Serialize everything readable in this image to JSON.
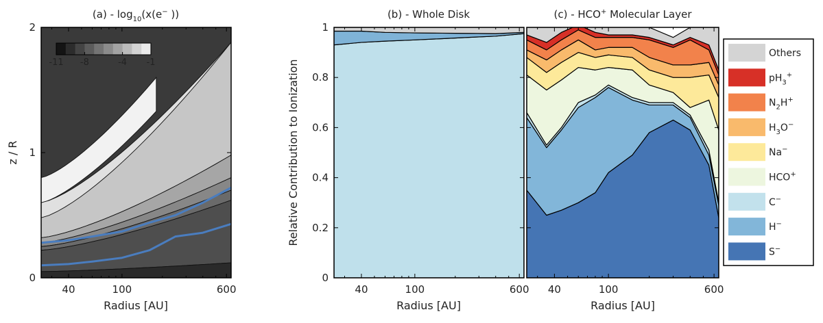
{
  "chart_data": [
    {
      "panel": "a",
      "type": "heatmap",
      "title": "(a) - log10(x(e− ))",
      "title_parts": {
        "prefix": "(a) - log",
        "sub": "10",
        "mid": "(x(e",
        "sup": "−",
        "suffix": " ))"
      },
      "xlabel": "Radius [AU]",
      "ylabel": "z / R",
      "x_scale": "log",
      "xlim": [
        25,
        650
      ],
      "ylim": [
        0,
        2
      ],
      "x_ticks": [
        40,
        100,
        600
      ],
      "y_ticks": [
        0,
        1,
        2
      ],
      "colorbar": {
        "min": -11,
        "max": -1,
        "ticks": [
          -11,
          -8,
          -4,
          -1
        ]
      },
      "contour_bands": [
        {
          "level": -1,
          "color": "#f2f2f2",
          "x": [
            25,
            180
          ],
          "y_low": [
            0.6,
            1.33
          ],
          "y_high": [
            0.8,
            1.6
          ]
        },
        {
          "level": -2,
          "color": "#e0e0e0",
          "x": [
            25,
            650
          ],
          "y_low": [
            0.48,
            1.4
          ],
          "y_high": [
            0.6,
            1.88
          ]
        },
        {
          "level": -3,
          "color": "#c6c6c6",
          "x": [
            25,
            650
          ],
          "y_low": [
            0.32,
            0.98
          ],
          "y_high": [
            0.48,
            1.88
          ]
        },
        {
          "level": -4,
          "color": "#a6a6a6",
          "x": [
            25,
            650
          ],
          "y_low": [
            0.28,
            0.8
          ],
          "y_high": [
            0.32,
            0.98
          ]
        },
        {
          "level": -5,
          "color": "#878787",
          "x": [
            25,
            650
          ],
          "y_low": [
            0.25,
            0.7
          ],
          "y_high": [
            0.28,
            0.8
          ]
        },
        {
          "level": -6,
          "color": "#6a6a6a",
          "x": [
            25,
            650
          ],
          "y_low": [
            0.22,
            0.62
          ],
          "y_high": [
            0.25,
            0.7
          ]
        },
        {
          "level": -7,
          "color": "#4e4e4e",
          "x": [
            25,
            650
          ],
          "y_low": [
            0.05,
            0.12
          ],
          "y_high": [
            0.22,
            0.62
          ]
        },
        {
          "level": -10,
          "color": "#2a2a2a",
          "x": [
            25,
            650
          ],
          "y_low": [
            0.0,
            0.0
          ],
          "y_high": [
            0.05,
            0.12
          ]
        }
      ],
      "hco_layer_lines": [
        {
          "name": "upper",
          "color": "#4a7dbf",
          "x": [
            25,
            40,
            60,
            100,
            160,
            250,
            400,
            650
          ],
          "y": [
            0.28,
            0.3,
            0.33,
            0.37,
            0.44,
            0.5,
            0.6,
            0.72
          ]
        },
        {
          "name": "lower",
          "color": "#4a7dbf",
          "x": [
            25,
            40,
            60,
            100,
            160,
            250,
            400,
            650
          ],
          "y": [
            0.1,
            0.11,
            0.13,
            0.16,
            0.22,
            0.33,
            0.36,
            0.43
          ]
        }
      ]
    },
    {
      "panel": "b",
      "type": "area",
      "title": "(b) - Whole Disk",
      "xlabel": "Radius [AU]",
      "ylabel": "Relative Contribution to Ionization",
      "x_scale": "log",
      "xlim": [
        25,
        650
      ],
      "ylim": [
        0,
        1
      ],
      "x_ticks": [
        40,
        100,
        600
      ],
      "y_ticks": [
        0,
        0.2,
        0.4,
        0.6,
        0.8,
        1
      ],
      "x": [
        25,
        40,
        60,
        100,
        160,
        250,
        400,
        650
      ],
      "series": [
        {
          "name": "C−",
          "color": "#bfe0eb",
          "values": [
            0.93,
            0.94,
            0.945,
            0.95,
            0.955,
            0.96,
            0.965,
            0.975
          ]
        },
        {
          "name": "H−",
          "color": "#7fb3d7",
          "values": [
            0.055,
            0.045,
            0.035,
            0.028,
            0.022,
            0.016,
            0.01,
            0.005
          ]
        },
        {
          "name": "Others",
          "color": "#d4d4d4",
          "values": [
            0.015,
            0.015,
            0.02,
            0.022,
            0.023,
            0.024,
            0.025,
            0.02
          ]
        }
      ]
    },
    {
      "panel": "c",
      "type": "area",
      "title": "(c) - HCO⁺ Molecular Layer",
      "title_parts": {
        "prefix": "(c) - HCO",
        "sup": "+",
        "suffix": " Molecular Layer"
      },
      "xlabel": "Radius [AU]",
      "x_scale": "log",
      "xlim": [
        25,
        650
      ],
      "ylim": [
        0,
        1
      ],
      "x_ticks": [
        40,
        100,
        600
      ],
      "x": [
        25,
        35,
        45,
        60,
        80,
        100,
        150,
        200,
        300,
        400,
        550,
        650
      ],
      "series": [
        {
          "name": "S−",
          "color": "#4575b4",
          "values": [
            0.35,
            0.25,
            0.27,
            0.3,
            0.34,
            0.42,
            0.49,
            0.58,
            0.63,
            0.59,
            0.45,
            0.24
          ]
        },
        {
          "name": "H−",
          "color": "#82b6d9",
          "values": [
            0.29,
            0.27,
            0.32,
            0.38,
            0.38,
            0.34,
            0.22,
            0.11,
            0.06,
            0.05,
            0.04,
            0.05
          ]
        },
        {
          "name": "C−",
          "color": "#c2e1ec",
          "values": [
            0.02,
            0.01,
            0.01,
            0.02,
            0.01,
            0.01,
            0.01,
            0.01,
            0.01,
            0.01,
            0.02,
            0.01
          ]
        },
        {
          "name": "HCO⁺",
          "color": "#edf6df",
          "values": [
            0.15,
            0.22,
            0.19,
            0.14,
            0.1,
            0.07,
            0.11,
            0.07,
            0.04,
            0.03,
            0.2,
            0.29
          ]
        },
        {
          "name": "Na−",
          "color": "#fde99a",
          "values": [
            0.07,
            0.07,
            0.07,
            0.06,
            0.05,
            0.05,
            0.05,
            0.06,
            0.06,
            0.12,
            0.1,
            0.13
          ]
        },
        {
          "name": "H₃O−",
          "color": "#f9ba6c",
          "values": [
            0.03,
            0.05,
            0.05,
            0.05,
            0.03,
            0.03,
            0.04,
            0.05,
            0.05,
            0.05,
            0.05,
            0.05
          ]
        },
        {
          "name": "N₂H⁺",
          "color": "#f2824b",
          "values": [
            0.04,
            0.04,
            0.04,
            0.04,
            0.05,
            0.04,
            0.04,
            0.07,
            0.07,
            0.1,
            0.05,
            0.04
          ]
        },
        {
          "name": "pH₃⁺",
          "color": "#d73027",
          "values": [
            0.02,
            0.03,
            0.03,
            0.02,
            0.02,
            0.01,
            0.01,
            0.01,
            0.01,
            0.01,
            0.02,
            0.02
          ]
        },
        {
          "name": "Others",
          "color": "#d4d4d4",
          "values": [
            0.03,
            0.06,
            0.02,
            0.02,
            0.02,
            0.03,
            0.03,
            0.04,
            0.03,
            0.04,
            0.07,
            0.17
          ]
        }
      ]
    }
  ],
  "legend": {
    "entries": [
      {
        "label": "Others",
        "color": "#d4d4d4"
      },
      {
        "label": "pH₃⁺",
        "color": "#d73027",
        "html": "pH<tspan dy=\"5\" font-size=\"10\">3</tspan><tspan dy=\"-11\" font-size=\"10\">+</tspan>"
      },
      {
        "label": "N₂H⁺",
        "color": "#f2824b",
        "html": "N<tspan dy=\"5\" font-size=\"10\">2</tspan><tspan dy=\"-5\">H</tspan><tspan dy=\"-6\" font-size=\"10\">+</tspan>"
      },
      {
        "label": "H₃O−",
        "color": "#f9ba6c",
        "html": "H<tspan dy=\"5\" font-size=\"10\">3</tspan><tspan dy=\"-5\">O</tspan><tspan dy=\"-6\" font-size=\"10\">−</tspan>"
      },
      {
        "label": "Na−",
        "color": "#fde99a",
        "html": "Na<tspan dy=\"-6\" font-size=\"10\">−</tspan>"
      },
      {
        "label": "HCO⁺",
        "color": "#edf6df",
        "html": "HCO<tspan dy=\"-6\" font-size=\"10\">+</tspan>"
      },
      {
        "label": "C−",
        "color": "#c2e1ec",
        "html": "C<tspan dy=\"-6\" font-size=\"10\">−</tspan>"
      },
      {
        "label": "H−",
        "color": "#82b6d9",
        "html": "H<tspan dy=\"-6\" font-size=\"10\">−</tspan>"
      },
      {
        "label": "S−",
        "color": "#4575b4",
        "html": "S<tspan dy=\"-6\" font-size=\"10\">−</tspan>"
      }
    ]
  }
}
